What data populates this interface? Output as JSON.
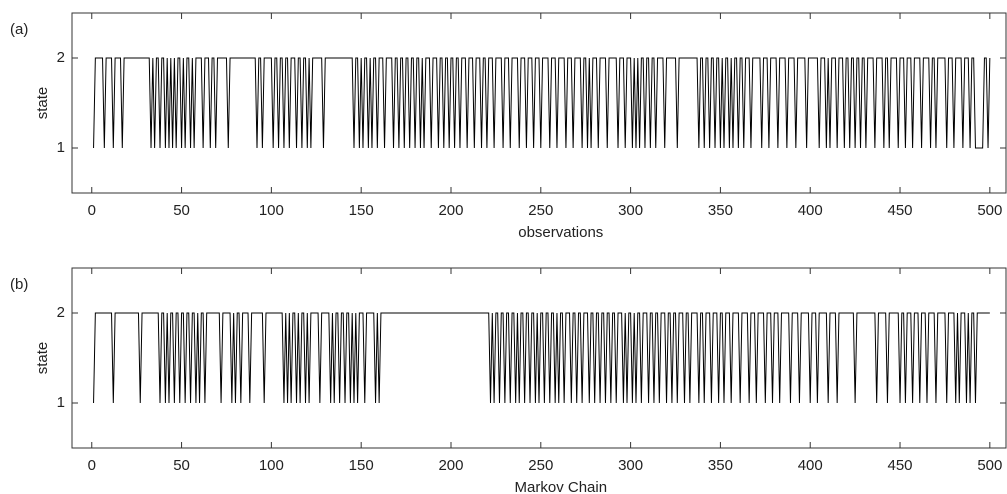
{
  "chart_data": [
    {
      "type": "line",
      "panel_label": "(a)",
      "ylabel": "state",
      "xlabel": "observations",
      "color": "#000000",
      "xlim": [
        -11,
        509
      ],
      "ylim": [
        0.5,
        2.5
      ],
      "xticks": [
        0,
        50,
        100,
        150,
        200,
        250,
        300,
        350,
        400,
        450,
        500
      ],
      "yticks": [
        1,
        2
      ],
      "x": [
        1,
        2,
        6,
        7,
        8,
        11,
        12,
        13,
        16,
        17,
        18,
        32,
        33,
        34,
        35,
        36,
        37,
        38,
        39,
        40,
        41,
        42,
        43,
        44,
        45,
        46,
        47,
        48,
        49,
        50,
        51,
        52,
        53,
        54,
        55,
        56,
        57,
        58,
        61,
        62,
        63,
        65,
        66,
        67,
        68,
        69,
        70,
        75,
        76,
        77,
        91,
        92,
        93,
        94,
        95,
        96,
        100,
        101,
        102,
        103,
        104,
        105,
        106,
        107,
        108,
        109,
        110,
        111,
        113,
        114,
        115,
        116,
        117,
        118,
        119,
        120,
        121,
        122,
        123,
        128,
        129,
        130,
        145,
        146,
        147,
        148,
        149,
        150,
        151,
        152,
        153,
        154,
        155,
        156,
        157,
        158,
        159,
        160,
        162,
        163,
        164,
        167,
        168,
        169,
        170,
        171,
        172,
        173,
        174,
        175,
        176,
        177,
        178,
        179,
        180,
        181,
        182,
        183,
        184,
        185,
        186,
        188,
        189,
        190,
        192,
        193,
        194,
        195,
        196,
        197,
        198,
        199,
        200,
        201,
        202,
        203,
        204,
        205,
        206,
        208,
        209,
        210,
        212,
        213,
        214,
        216,
        217,
        218,
        219,
        220,
        221,
        223,
        224,
        225,
        228,
        229,
        230,
        232,
        233,
        234,
        237,
        238,
        239,
        241,
        242,
        243,
        245,
        246,
        247,
        249,
        250,
        251,
        254,
        255,
        256,
        258,
        259,
        260,
        263,
        264,
        265,
        267,
        268,
        269,
        272,
        273,
        274,
        275,
        276,
        277,
        278,
        279,
        281,
        282,
        283,
        286,
        287,
        288,
        292,
        293,
        294,
        296,
        297,
        298,
        300,
        301,
        302,
        303,
        304,
        305,
        306,
        307,
        308,
        309,
        310,
        311,
        312,
        313,
        314,
        315,
        318,
        319,
        320,
        325,
        326,
        327,
        337,
        338,
        339,
        340,
        341,
        342,
        343,
        344,
        345,
        346,
        347,
        348,
        349,
        350,
        351,
        352,
        353,
        354,
        355,
        356,
        357,
        358,
        359,
        360,
        361,
        362,
        363,
        364,
        366,
        367,
        368,
        372,
        373,
        374,
        376,
        377,
        378,
        381,
        382,
        383,
        386,
        387,
        388,
        391,
        392,
        393,
        397,
        398,
        399,
        404,
        405,
        406,
        408,
        409,
        410,
        411,
        412,
        414,
        415,
        416,
        418,
        419,
        420,
        421,
        422,
        423,
        424,
        425,
        426,
        427,
        428,
        429,
        430,
        431,
        432,
        435,
        436,
        437,
        440,
        441,
        442,
        443,
        444,
        445,
        448,
        449,
        450,
        452,
        453,
        454,
        456,
        457,
        458,
        461,
        462,
        463,
        466,
        467,
        468,
        469,
        470,
        471,
        475,
        476,
        477,
        479,
        480,
        481,
        484,
        485,
        486,
        488,
        489,
        490,
        491,
        492,
        496,
        497,
        498,
        499,
        500
      ],
      "values": [
        1,
        2,
        2,
        1,
        2,
        2,
        1,
        2,
        2,
        1,
        2,
        2,
        1,
        2,
        1,
        2,
        2,
        1,
        2,
        2,
        1,
        2,
        1,
        2,
        1,
        2,
        1,
        2,
        2,
        1,
        2,
        1,
        2,
        2,
        1,
        2,
        1,
        2,
        2,
        1,
        2,
        2,
        1,
        2,
        2,
        1,
        2,
        2,
        1,
        2,
        2,
        1,
        2,
        2,
        1,
        2,
        2,
        1,
        2,
        2,
        1,
        2,
        2,
        1,
        2,
        2,
        1,
        2,
        2,
        1,
        2,
        2,
        1,
        2,
        2,
        1,
        2,
        1,
        2,
        2,
        1,
        2,
        2,
        1,
        2,
        2,
        1,
        2,
        1,
        2,
        2,
        1,
        2,
        1,
        2,
        2,
        1,
        2,
        2,
        1,
        2,
        2,
        1,
        2,
        2,
        1,
        2,
        2,
        1,
        2,
        2,
        1,
        2,
        2,
        1,
        2,
        2,
        1,
        2,
        1,
        2,
        2,
        1,
        2,
        2,
        1,
        2,
        2,
        1,
        2,
        2,
        1,
        2,
        2,
        1,
        2,
        2,
        1,
        2,
        2,
        1,
        2,
        2,
        1,
        2,
        2,
        1,
        2,
        2,
        1,
        2,
        2,
        1,
        2,
        2,
        1,
        2,
        2,
        1,
        2,
        2,
        1,
        2,
        2,
        1,
        2,
        2,
        1,
        2,
        2,
        1,
        2,
        2,
        1,
        2,
        2,
        1,
        2,
        2,
        1,
        2,
        2,
        1,
        2,
        2,
        1,
        2,
        2,
        1,
        2,
        1,
        2,
        2,
        1,
        2,
        2,
        1,
        2,
        2,
        1,
        2,
        2,
        1,
        2,
        2,
        1,
        2,
        1,
        2,
        1,
        2,
        2,
        1,
        2,
        2,
        1,
        2,
        2,
        1,
        2,
        2,
        1,
        2,
        2,
        1,
        2,
        2,
        1,
        2,
        2,
        1,
        2,
        2,
        1,
        2,
        2,
        1,
        2,
        2,
        1,
        2,
        1,
        2,
        2,
        1,
        2,
        1,
        2,
        2,
        1,
        2,
        2,
        1,
        2,
        2,
        1,
        2,
        2,
        1,
        2,
        2,
        1,
        2,
        2,
        1,
        2,
        2,
        1,
        2,
        2,
        1,
        2,
        2,
        1,
        2,
        2,
        1,
        2,
        2,
        1,
        2,
        1,
        2,
        2,
        1,
        2,
        2,
        1,
        2,
        2,
        1,
        2,
        2,
        1,
        2,
        2,
        1,
        2,
        2,
        1,
        2,
        2,
        1,
        2,
        2,
        1,
        2,
        2,
        1,
        2,
        2,
        1,
        2,
        2,
        1,
        2,
        2,
        1,
        2,
        2,
        1,
        2,
        2,
        1,
        2,
        2,
        1,
        2,
        2,
        1,
        2,
        2,
        1,
        2,
        2,
        1,
        2,
        2,
        1,
        2,
        2,
        1,
        1,
        2,
        2,
        1,
        2
      ]
    },
    {
      "type": "line",
      "panel_label": "(b)",
      "ylabel": "state",
      "xlabel": "Markov Chain",
      "color": "#000000",
      "xlim": [
        -11,
        509
      ],
      "ylim": [
        0.5,
        2.5
      ],
      "xticks": [
        0,
        50,
        100,
        150,
        200,
        250,
        300,
        350,
        400,
        450,
        500
      ],
      "yticks": [
        1,
        2
      ],
      "x": [
        1,
        2,
        11,
        12,
        13,
        26,
        27,
        28,
        37,
        38,
        39,
        40,
        41,
        42,
        43,
        44,
        45,
        46,
        47,
        48,
        49,
        50,
        51,
        52,
        53,
        54,
        55,
        56,
        57,
        58,
        59,
        60,
        61,
        62,
        63,
        64,
        71,
        72,
        73,
        77,
        78,
        79,
        80,
        81,
        82,
        83,
        84,
        87,
        88,
        89,
        95,
        96,
        97,
        106,
        107,
        108,
        109,
        110,
        111,
        112,
        113,
        114,
        115,
        116,
        117,
        118,
        119,
        120,
        121,
        122,
        126,
        127,
        128,
        132,
        133,
        134,
        135,
        136,
        137,
        138,
        139,
        140,
        141,
        142,
        143,
        144,
        145,
        146,
        147,
        148,
        149,
        151,
        152,
        153,
        157,
        158,
        159,
        160,
        161,
        221,
        222,
        223,
        224,
        225,
        226,
        227,
        228,
        229,
        230,
        231,
        232,
        233,
        234,
        235,
        236,
        237,
        238,
        239,
        240,
        241,
        242,
        243,
        244,
        245,
        246,
        247,
        248,
        249,
        250,
        251,
        252,
        253,
        254,
        255,
        256,
        257,
        258,
        259,
        260,
        261,
        262,
        263,
        264,
        266,
        267,
        268,
        269,
        270,
        271,
        272,
        273,
        274,
        276,
        277,
        278,
        279,
        280,
        281,
        282,
        283,
        284,
        285,
        286,
        287,
        288,
        289,
        290,
        291,
        292,
        293,
        295,
        296,
        297,
        298,
        299,
        300,
        301,
        302,
        303,
        304,
        305,
        306,
        307,
        309,
        310,
        311,
        312,
        313,
        314,
        315,
        316,
        317,
        319,
        320,
        321,
        322,
        323,
        324,
        325,
        326,
        327,
        329,
        330,
        331,
        332,
        333,
        334,
        337,
        338,
        339,
        340,
        341,
        342,
        344,
        345,
        346,
        348,
        349,
        350,
        351,
        352,
        353,
        355,
        356,
        357,
        360,
        361,
        362,
        365,
        366,
        367,
        369,
        370,
        371,
        374,
        375,
        376,
        378,
        379,
        380,
        382,
        383,
        384,
        388,
        389,
        390,
        393,
        394,
        395,
        399,
        400,
        401,
        403,
        404,
        405,
        409,
        410,
        411,
        414,
        415,
        416,
        424,
        425,
        426,
        436,
        437,
        438,
        442,
        443,
        444,
        449,
        450,
        451,
        452,
        453,
        454,
        456,
        457,
        458,
        460,
        461,
        462,
        464,
        465,
        466,
        469,
        470,
        471,
        475,
        476,
        477,
        480,
        481,
        482,
        483,
        484,
        486,
        487,
        488,
        489,
        490,
        491,
        492,
        493,
        500
      ],
      "values": [
        1,
        2,
        2,
        1,
        2,
        2,
        1,
        2,
        2,
        1,
        2,
        2,
        1,
        2,
        1,
        2,
        2,
        1,
        2,
        2,
        1,
        2,
        2,
        1,
        2,
        2,
        1,
        2,
        2,
        1,
        2,
        1,
        2,
        2,
        1,
        2,
        2,
        1,
        2,
        2,
        1,
        2,
        1,
        2,
        2,
        1,
        2,
        2,
        1,
        2,
        2,
        1,
        2,
        2,
        1,
        2,
        1,
        2,
        1,
        2,
        2,
        1,
        2,
        1,
        2,
        2,
        1,
        2,
        1,
        2,
        2,
        1,
        2,
        2,
        1,
        2,
        1,
        2,
        2,
        1,
        2,
        2,
        1,
        2,
        2,
        1,
        2,
        1,
        2,
        1,
        2,
        2,
        1,
        2,
        2,
        1,
        2,
        1,
        2,
        2,
        1,
        2,
        1,
        2,
        2,
        1,
        2,
        2,
        1,
        2,
        2,
        1,
        2,
        2,
        1,
        2,
        1,
        2,
        2,
        1,
        2,
        2,
        1,
        2,
        2,
        1,
        2,
        1,
        2,
        2,
        1,
        2,
        2,
        1,
        2,
        2,
        1,
        2,
        1,
        2,
        2,
        1,
        2,
        2,
        1,
        2,
        2,
        1,
        2,
        2,
        1,
        2,
        2,
        1,
        2,
        2,
        1,
        2,
        2,
        1,
        2,
        2,
        1,
        2,
        2,
        1,
        2,
        2,
        1,
        2,
        2,
        1,
        2,
        1,
        2,
        2,
        1,
        2,
        1,
        2,
        2,
        1,
        2,
        2,
        1,
        2,
        2,
        1,
        2,
        2,
        1,
        2,
        2,
        1,
        2,
        2,
        1,
        2,
        2,
        1,
        2,
        2,
        1,
        2,
        2,
        1,
        2,
        2,
        1,
        2,
        2,
        1,
        2,
        2,
        1,
        2,
        2,
        1,
        2,
        2,
        1,
        2,
        2,
        1,
        2,
        2,
        1,
        2,
        2,
        1,
        2,
        2,
        1,
        2,
        2,
        1,
        2,
        2,
        1,
        2,
        2,
        1,
        2,
        2,
        1,
        2,
        2,
        1,
        2,
        2,
        1,
        2,
        2,
        1,
        2,
        2,
        1,
        2,
        2,
        1,
        2,
        2,
        1,
        2,
        2,
        1,
        2,
        2,
        1,
        2,
        2,
        1,
        2,
        2,
        1,
        2,
        2,
        1,
        2,
        2,
        1,
        2,
        2,
        1,
        2,
        2,
        1,
        2,
        2,
        1,
        2,
        2,
        1,
        2,
        1,
        2,
        2,
        1,
        2,
        1,
        2,
        2,
        1,
        2,
        2
      ]
    }
  ]
}
